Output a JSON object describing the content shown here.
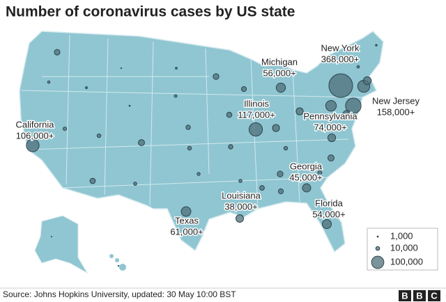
{
  "map": {
    "title": "Number of coronavirus cases by US state",
    "labeled_states": [
      {
        "name": "California",
        "value": 106000,
        "value_label": "106,000+"
      },
      {
        "name": "Texas",
        "value": 61000,
        "value_label": "61,000+"
      },
      {
        "name": "Louisiana",
        "value": 38000,
        "value_label": "38,000+"
      },
      {
        "name": "Illinois",
        "value": 117000,
        "value_label": "117,000+"
      },
      {
        "name": "Michigan",
        "value": 56000,
        "value_label": "56,000+"
      },
      {
        "name": "New York",
        "value": 368000,
        "value_label": "368,000+"
      },
      {
        "name": "New Jersey",
        "value": 158000,
        "value_label": "158,000+"
      },
      {
        "name": "Pennsylvania",
        "value": 74000,
        "value_label": "74,000+"
      },
      {
        "name": "Georgia",
        "value": 45000,
        "value_label": "45,000+"
      },
      {
        "name": "Florida",
        "value": 54000,
        "value_label": "54,000+"
      }
    ],
    "other_values": [
      21000,
      4000,
      2700,
      500,
      900,
      8000,
      9000,
      19000,
      25000,
      7000,
      2500,
      4700,
      13000,
      9500,
      6300,
      22000,
      18000,
      13000,
      6500,
      16500,
      33000,
      34000,
      9000,
      22000,
      14500,
      16500,
      10500,
      26000,
      40000,
      51000,
      96000,
      42000,
      2000,
      1000,
      4400,
      400,
      600
    ],
    "legend": [
      {
        "value": 1000,
        "label": "1,000"
      },
      {
        "value": 10000,
        "label": "10,000"
      },
      {
        "value": 100000,
        "label": "100,000"
      }
    ],
    "source": "Source: Johns Hopkins University, updated: 30 May 10:00 BST",
    "logo": [
      "B",
      "B",
      "C"
    ]
  }
}
